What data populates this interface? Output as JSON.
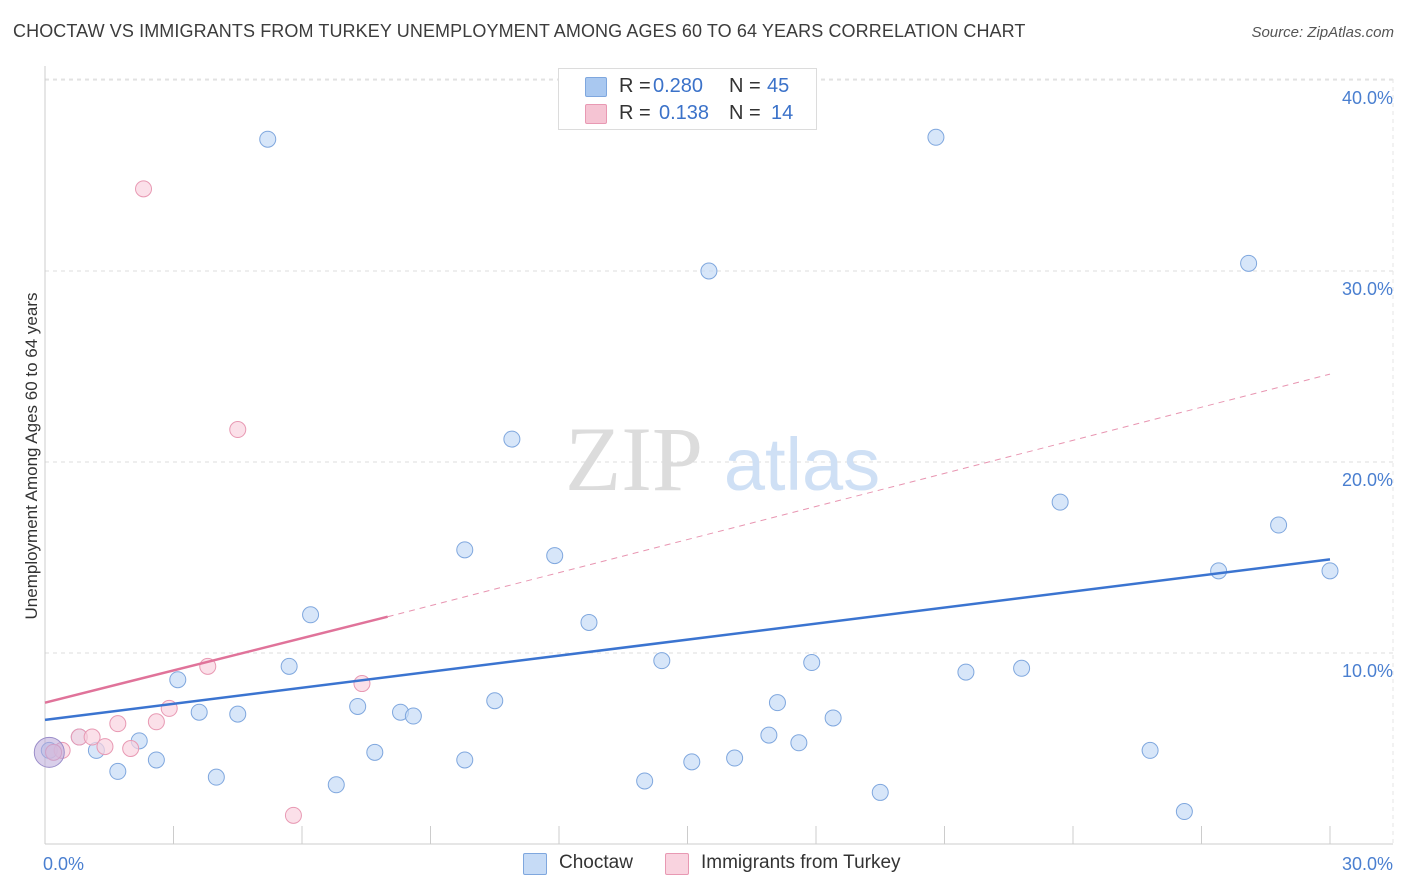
{
  "header": {
    "title": "CHOCTAW VS IMMIGRANTS FROM TURKEY UNEMPLOYMENT AMONG AGES 60 TO 64 YEARS CORRELATION CHART",
    "source": "Source: ZipAtlas.com"
  },
  "watermark": {
    "zip": "ZIP",
    "atlas": "atlas"
  },
  "legend_top": {
    "rows": [
      {
        "r_label": "R =",
        "r_value": "0.280",
        "n_label": "N =",
        "n_value": "45",
        "color": "#a9c8f0"
      },
      {
        "r_label": "R =",
        "r_value": "0.138",
        "n_label": "N =",
        "n_value": "14",
        "color": "#f5b5c8"
      }
    ]
  },
  "legend_bottom": {
    "items": [
      {
        "label": "Choctaw",
        "color": "#a9c8f0"
      },
      {
        "label": "Immigrants from Turkey",
        "color": "#f5b5c8"
      }
    ]
  },
  "chart_data": {
    "type": "scatter",
    "title": "CHOCTAW VS IMMIGRANTS FROM TURKEY UNEMPLOYMENT AMONG AGES 60 TO 64 YEARS CORRELATION CHART",
    "xlabel": "",
    "ylabel": "Unemployment Among Ages 60 to 64 years",
    "xlim": [
      0,
      30
    ],
    "ylim": [
      0,
      40
    ],
    "x_tick_labels": [
      "0.0%",
      "30.0%"
    ],
    "y_ticks": [
      10,
      20,
      30,
      40
    ],
    "y_tick_labels": [
      "10.0%",
      "20.0%",
      "30.0%",
      "40.0%"
    ],
    "grid": true,
    "colors": {
      "choctaw": "#3b74d0",
      "turkey": "#e0739a"
    },
    "series": [
      {
        "name": "Choctaw",
        "points": [
          [
            0.1,
            4.9
          ],
          [
            0.8,
            5.6
          ],
          [
            1.2,
            4.9
          ],
          [
            1.7,
            3.8
          ],
          [
            2.2,
            5.4
          ],
          [
            2.6,
            4.4
          ],
          [
            3.1,
            8.6
          ],
          [
            3.6,
            6.9
          ],
          [
            4.0,
            3.5
          ],
          [
            4.5,
            6.8
          ],
          [
            5.2,
            36.9
          ],
          [
            5.7,
            9.3
          ],
          [
            6.2,
            12.0
          ],
          [
            6.8,
            3.1
          ],
          [
            7.3,
            7.2
          ],
          [
            7.7,
            4.8
          ],
          [
            8.3,
            6.9
          ],
          [
            8.6,
            6.7
          ],
          [
            9.8,
            4.4
          ],
          [
            9.8,
            15.4
          ],
          [
            10.5,
            7.5
          ],
          [
            10.9,
            21.2
          ],
          [
            11.9,
            15.1
          ],
          [
            12.7,
            11.6
          ],
          [
            14.0,
            3.3
          ],
          [
            14.4,
            9.6
          ],
          [
            15.1,
            4.3
          ],
          [
            15.5,
            30.0
          ],
          [
            16.1,
            4.5
          ],
          [
            16.9,
            5.7
          ],
          [
            17.1,
            7.4
          ],
          [
            17.6,
            5.3
          ],
          [
            17.9,
            9.5
          ],
          [
            18.4,
            6.6
          ],
          [
            19.5,
            2.7
          ],
          [
            20.8,
            37.0
          ],
          [
            21.5,
            9.0
          ],
          [
            22.8,
            9.2
          ],
          [
            23.7,
            17.9
          ],
          [
            25.8,
            4.9
          ],
          [
            26.6,
            1.7
          ],
          [
            27.4,
            14.3
          ],
          [
            28.1,
            30.4
          ],
          [
            28.8,
            16.7
          ],
          [
            30.0,
            14.3
          ]
        ],
        "trend": {
          "x0": 0,
          "y0": 6.5,
          "x1": 30,
          "y1": 14.9,
          "style": "solid"
        }
      },
      {
        "name": "Immigrants from Turkey",
        "points": [
          [
            0.4,
            4.9
          ],
          [
            0.8,
            5.6
          ],
          [
            1.1,
            5.6
          ],
          [
            1.4,
            5.1
          ],
          [
            1.7,
            6.3
          ],
          [
            2.0,
            5.0
          ],
          [
            2.3,
            34.3
          ],
          [
            2.6,
            6.4
          ],
          [
            2.9,
            7.1
          ],
          [
            3.8,
            9.3
          ],
          [
            4.5,
            21.7
          ],
          [
            5.8,
            1.5
          ],
          [
            7.4,
            8.4
          ],
          [
            0.2,
            4.8
          ]
        ],
        "trend": {
          "x0": 0,
          "y0": 7.4,
          "x1": 8,
          "y1": 11.9,
          "style": "solid"
        },
        "trend_extension": {
          "x0": 8,
          "y0": 11.9,
          "x1": 30,
          "y1": 24.6,
          "style": "dashed"
        }
      }
    ]
  }
}
